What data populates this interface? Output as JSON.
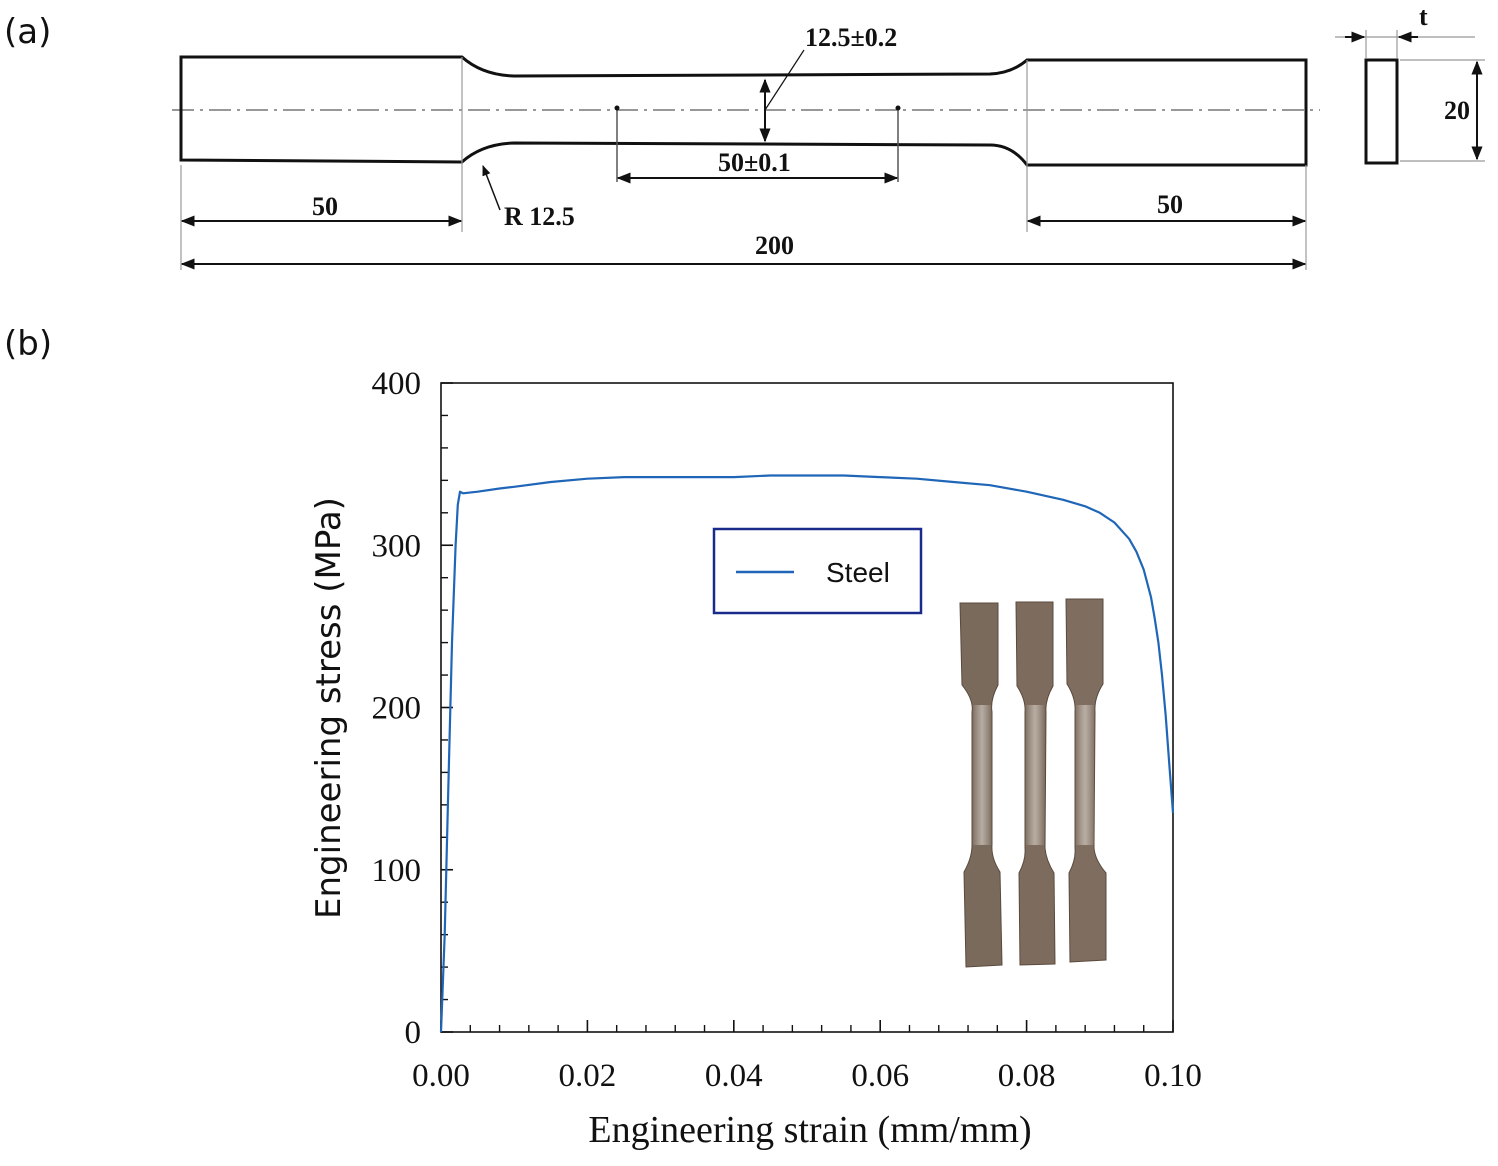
{
  "panels": {
    "a": "(a)",
    "b": "(b)"
  },
  "drawing": {
    "dim_width": "12.5±0.2",
    "dim_gauge": "50±0.1",
    "dim_radius": "R 12.5",
    "dim_grip_left": "50",
    "dim_grip_right": "50",
    "dim_total": "200",
    "dim_height": "20",
    "dim_thickness": "t"
  },
  "chart_data": {
    "type": "line",
    "xlabel": "Engineering strain (mm/mm)",
    "ylabel": "Engineering stress (MPa)",
    "xlim": [
      0,
      0.1
    ],
    "ylim": [
      0,
      400
    ],
    "x_ticks": [
      "0.00",
      "0.02",
      "0.04",
      "0.06",
      "0.08",
      "0.10"
    ],
    "y_ticks": [
      "0",
      "100",
      "200",
      "300",
      "400"
    ],
    "legend": {
      "placement": "upper-center"
    },
    "series": [
      {
        "name": "Steel",
        "color": "#1f66b8",
        "x": [
          0.0,
          0.0005,
          0.001,
          0.0015,
          0.002,
          0.0023,
          0.0026,
          0.003,
          0.005,
          0.008,
          0.01,
          0.015,
          0.02,
          0.025,
          0.03,
          0.035,
          0.04,
          0.045,
          0.05,
          0.055,
          0.06,
          0.065,
          0.07,
          0.075,
          0.08,
          0.085,
          0.088,
          0.09,
          0.092,
          0.094,
          0.095,
          0.096,
          0.097,
          0.0975,
          0.098,
          0.0985,
          0.099,
          0.0995,
          0.1
        ],
        "y": [
          0,
          60,
          150,
          240,
          300,
          325,
          333,
          332,
          333,
          335,
          336,
          339,
          341,
          342,
          342,
          342,
          342,
          343,
          343,
          343,
          342,
          341,
          339,
          337,
          333,
          328,
          324,
          320,
          314,
          304,
          296,
          285,
          268,
          255,
          240,
          220,
          195,
          165,
          135
        ]
      }
    ]
  },
  "inset": {
    "description_icon": "tensile-specimens-photo"
  }
}
